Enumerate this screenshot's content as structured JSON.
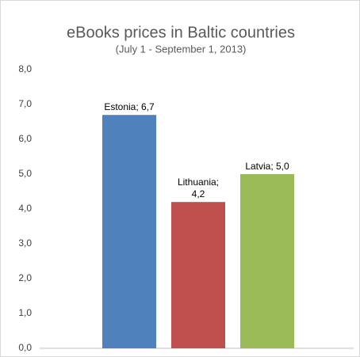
{
  "chart_data": {
    "type": "bar",
    "title": "eBooks prices in Baltic countries",
    "subtitle": "(July 1 - September 1, 2013)",
    "categories": [
      "Estonia",
      "Lithuania",
      "Latvia"
    ],
    "values": [
      6.7,
      4.2,
      5.0
    ],
    "value_labels": [
      "Estonia; 6,7",
      "Lithuania; 4,2",
      "Latvia; 5,0"
    ],
    "colors": [
      "#4f81bd",
      "#c0504d",
      "#9bbb59"
    ],
    "ylim": [
      0,
      8
    ],
    "yticks": [
      {
        "value": 0,
        "label": "0,0"
      },
      {
        "value": 1,
        "label": "1,0"
      },
      {
        "value": 2,
        "label": "2,0"
      },
      {
        "value": 3,
        "label": "3,0"
      },
      {
        "value": 4,
        "label": "4,0"
      },
      {
        "value": 5,
        "label": "5,0"
      },
      {
        "value": 6,
        "label": "6,0"
      },
      {
        "value": 7,
        "label": "7,0"
      },
      {
        "value": 8,
        "label": "8,0"
      }
    ],
    "grid": false
  }
}
